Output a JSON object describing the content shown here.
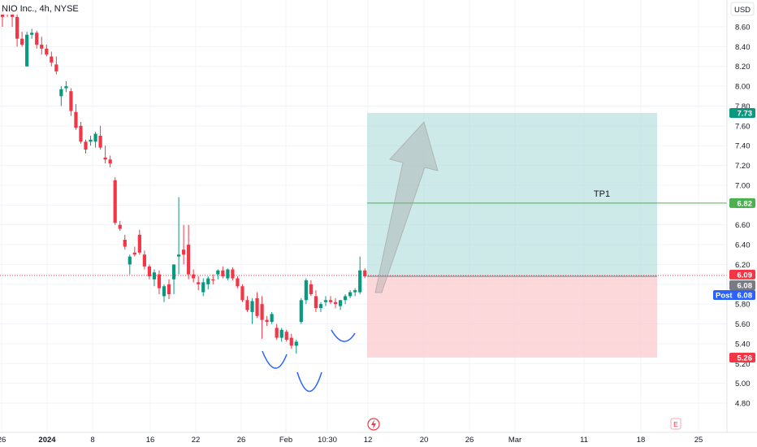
{
  "header": {
    "symbol": "NIO Inc., 4h, NYSE"
  },
  "currency_button": {
    "label": "USD"
  },
  "chart_data": {
    "type": "candlestick",
    "ylim": [
      4.8,
      8.7
    ],
    "y_ticks": [
      "8.60",
      "8.40",
      "8.20",
      "8.00",
      "7.80",
      "7.60",
      "7.40",
      "7.20",
      "7.00",
      "6.80",
      "6.60",
      "6.40",
      "6.20",
      "6.00",
      "5.80",
      "5.60",
      "5.40",
      "5.20",
      "5.00",
      "4.80"
    ],
    "x_ticks": [
      {
        "label": "26",
        "bold": false
      },
      {
        "label": "2024",
        "bold": true
      },
      {
        "label": "8",
        "bold": false
      },
      {
        "label": "16",
        "bold": false
      },
      {
        "label": "22",
        "bold": false
      },
      {
        "label": "26",
        "bold": false
      },
      {
        "label": "Feb",
        "bold": false
      },
      {
        "label": "10:30",
        "bold": false
      },
      {
        "label": "12",
        "bold": false
      },
      {
        "label": "20",
        "bold": false
      },
      {
        "label": "26",
        "bold": false
      },
      {
        "label": "Mar",
        "bold": false
      },
      {
        "label": "11",
        "bold": false
      },
      {
        "label": "18",
        "bold": false
      },
      {
        "label": "25",
        "bold": false
      }
    ],
    "candles": [
      [
        8.75,
        8.8,
        8.6,
        8.7
      ],
      [
        8.8,
        8.85,
        8.7,
        8.78
      ],
      [
        8.78,
        8.82,
        8.6,
        8.7
      ],
      [
        8.7,
        8.75,
        8.4,
        8.48
      ],
      [
        8.48,
        8.55,
        8.4,
        8.42
      ],
      [
        8.2,
        8.55,
        8.2,
        8.52
      ],
      [
        8.52,
        8.58,
        8.48,
        8.54
      ],
      [
        8.54,
        8.56,
        8.38,
        8.42
      ],
      [
        8.42,
        8.5,
        8.32,
        8.38
      ],
      [
        8.38,
        8.42,
        8.3,
        8.32
      ],
      [
        8.3,
        8.35,
        8.2,
        8.24
      ],
      [
        8.22,
        8.3,
        8.12,
        8.15
      ],
      [
        7.9,
        8.0,
        7.8,
        7.97
      ],
      [
        7.98,
        8.05,
        7.94,
        8.0
      ],
      [
        7.95,
        7.98,
        7.7,
        7.75
      ],
      [
        7.74,
        7.82,
        7.56,
        7.58
      ],
      [
        7.6,
        7.64,
        7.42,
        7.44
      ],
      [
        7.44,
        7.46,
        7.32,
        7.36
      ],
      [
        7.44,
        7.5,
        7.4,
        7.46
      ],
      [
        7.44,
        7.54,
        7.38,
        7.52
      ],
      [
        7.5,
        7.6,
        7.36,
        7.38
      ],
      [
        7.28,
        7.4,
        7.22,
        7.26
      ],
      [
        7.26,
        7.3,
        7.18,
        7.22
      ],
      [
        7.05,
        7.08,
        6.6,
        6.62
      ],
      [
        6.6,
        6.64,
        6.54,
        6.56
      ],
      [
        6.45,
        6.5,
        6.35,
        6.38
      ],
      [
        6.2,
        6.3,
        6.1,
        6.28
      ],
      [
        6.32,
        6.38,
        6.28,
        6.3
      ],
      [
        6.5,
        6.55,
        6.3,
        6.32
      ],
      [
        6.3,
        6.34,
        6.15,
        6.18
      ],
      [
        6.18,
        6.2,
        6.05,
        6.08
      ],
      [
        6.05,
        6.15,
        5.98,
        6.12
      ],
      [
        6.1,
        6.14,
        5.9,
        5.96
      ],
      [
        5.88,
        6.0,
        5.82,
        5.98
      ],
      [
        6.0,
        6.05,
        5.85,
        5.9
      ],
      [
        6.05,
        6.2,
        5.9,
        6.2
      ],
      [
        6.28,
        6.88,
        6.1,
        6.3
      ],
      [
        6.35,
        6.6,
        6.2,
        6.3
      ],
      [
        6.4,
        6.6,
        6.05,
        6.1
      ],
      [
        6.1,
        6.15,
        6.02,
        6.06
      ],
      [
        6.02,
        6.08,
        5.94,
        6.0
      ],
      [
        5.92,
        6.06,
        5.88,
        6.02
      ],
      [
        6.0,
        6.08,
        5.95,
        6.06
      ],
      [
        6.05,
        6.1,
        6.0,
        6.04
      ],
      [
        6.1,
        6.15,
        6.05,
        6.14
      ],
      [
        6.14,
        6.18,
        6.06,
        6.08
      ],
      [
        6.06,
        6.16,
        6.04,
        6.15
      ],
      [
        6.15,
        6.17,
        6.04,
        6.06
      ],
      [
        6.06,
        6.08,
        5.96,
        5.98
      ],
      [
        5.98,
        6.0,
        5.82,
        5.84
      ],
      [
        5.84,
        5.88,
        5.72,
        5.74
      ],
      [
        5.72,
        5.86,
        5.6,
        5.83
      ],
      [
        5.86,
        5.92,
        5.66,
        5.68
      ],
      [
        5.8,
        5.88,
        5.45,
        5.64
      ],
      [
        5.64,
        5.68,
        5.58,
        5.62
      ],
      [
        5.62,
        5.72,
        5.6,
        5.7
      ],
      [
        5.56,
        5.6,
        5.44,
        5.46
      ],
      [
        5.46,
        5.56,
        5.42,
        5.54
      ],
      [
        5.52,
        5.54,
        5.42,
        5.44
      ],
      [
        5.46,
        5.5,
        5.35,
        5.38
      ],
      [
        5.38,
        5.44,
        5.3,
        5.42
      ],
      [
        5.62,
        5.86,
        5.6,
        5.84
      ],
      [
        5.84,
        6.06,
        5.8,
        6.04
      ],
      [
        6.0,
        6.04,
        5.88,
        5.9
      ],
      [
        5.88,
        5.94,
        5.72,
        5.76
      ],
      [
        5.76,
        5.82,
        5.72,
        5.8
      ],
      [
        5.82,
        5.88,
        5.78,
        5.84
      ],
      [
        5.84,
        5.88,
        5.8,
        5.82
      ],
      [
        5.82,
        5.86,
        5.76,
        5.8
      ],
      [
        5.78,
        5.84,
        5.74,
        5.84
      ],
      [
        5.84,
        5.9,
        5.8,
        5.88
      ],
      [
        5.88,
        5.94,
        5.86,
        5.92
      ],
      [
        5.92,
        5.96,
        5.88,
        5.94
      ],
      [
        5.92,
        6.28,
        5.9,
        6.14
      ],
      [
        6.14,
        6.16,
        6.06,
        6.08
      ]
    ],
    "position": {
      "entry": 6.08,
      "target": 7.73,
      "stop": 5.26
    },
    "tp1": {
      "label": "TP1",
      "price": 6.82
    },
    "price_labels": {
      "last_price": "6.09",
      "current": "6.08",
      "post_label": "Post",
      "post_price": "6.08",
      "target": "7.73",
      "tp1": "6.82",
      "stop": "5.26"
    },
    "colors": {
      "up": "#089981",
      "down": "#F23645",
      "reward_zone": "#B2DFDB",
      "risk_zone": "#FCCBCD",
      "tp_line": "#4CAF50",
      "arrow": "#9E9E9E",
      "pattern": "#2962FF",
      "post_badge": "#2962FF",
      "current_badge": "#787B86"
    }
  },
  "icons": {
    "flash": "lightning-icon",
    "earnings": "earnings-icon"
  },
  "earnings_letter": "E"
}
